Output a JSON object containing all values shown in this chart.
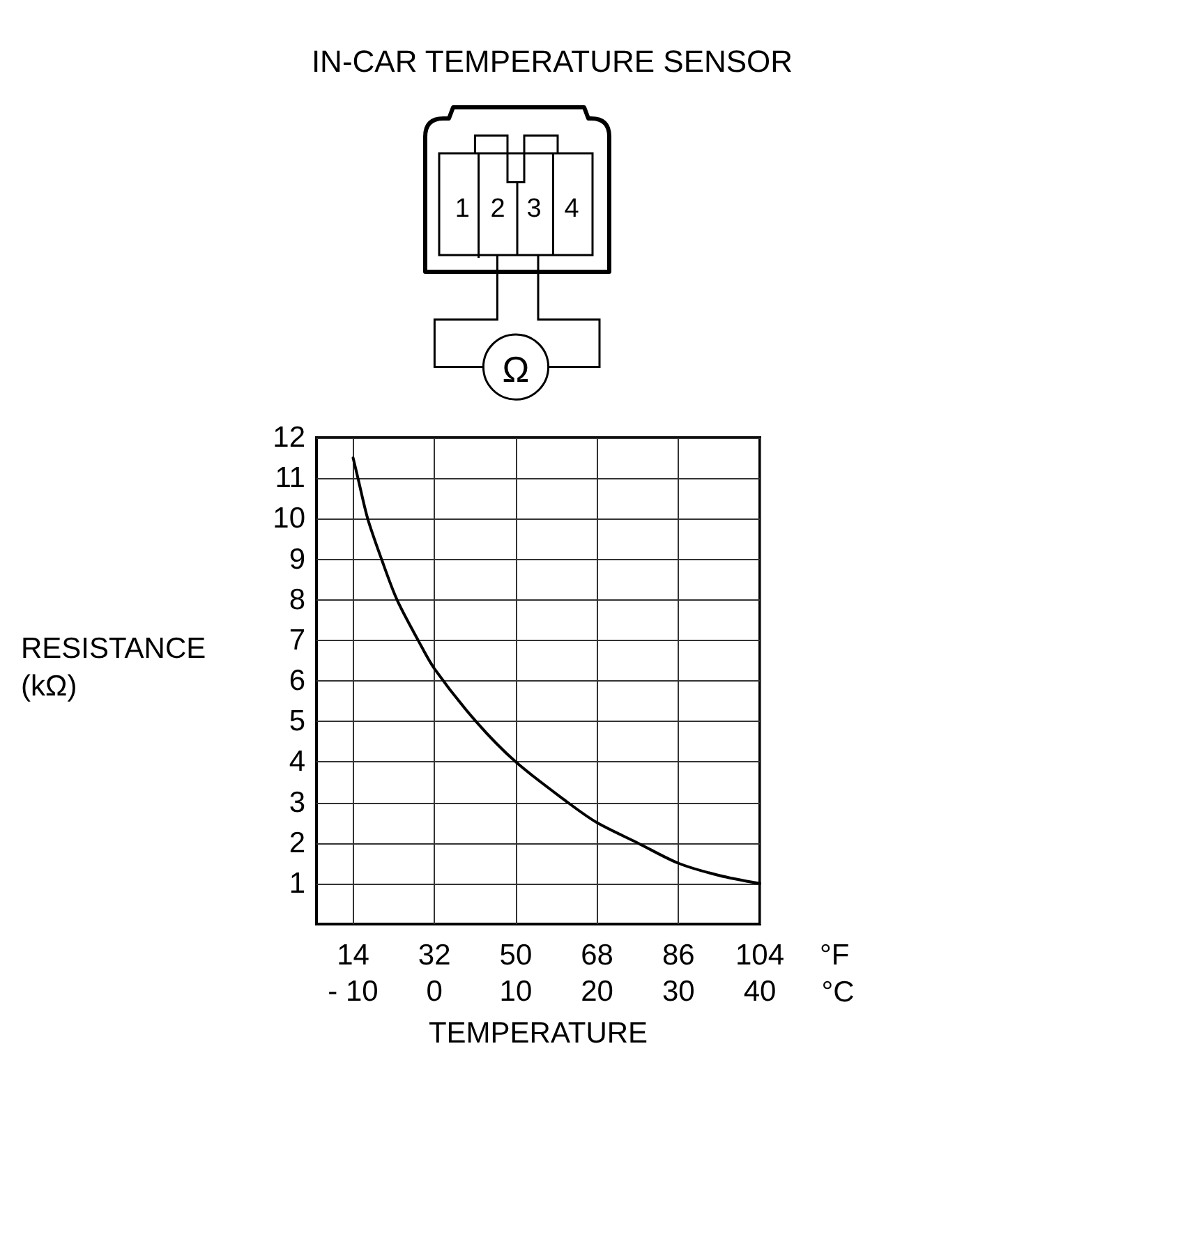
{
  "chart_data": {
    "type": "line",
    "title": "IN-CAR TEMPERATURE SENSOR",
    "xlabel": "TEMPERATURE",
    "ylabel": "RESISTANCE\n(kΩ)",
    "x2label": "°F",
    "annotations": [
      "1",
      "2",
      "3",
      "4",
      "Ω",
      "°C"
    ],
    "x": [
      -10,
      -9.4,
      -8.2,
      -6.5,
      -4.6,
      -2,
      0,
      5.1,
      10,
      16.4,
      20,
      25,
      30,
      35,
      40
    ],
    "series": [
      {
        "color": "#000000",
        "values": [
          11.5,
          11.0,
          10.0,
          9.0,
          8.0,
          7.0,
          6.3,
          5.0,
          4.0,
          3.0,
          2.5,
          2.0,
          1.5,
          1.2,
          1.0
        ]
      }
    ],
    "xlim": [
      -14.5,
      40
    ],
    "xticks": [
      {
        "value": -10,
        "label": "- 10"
      },
      0,
      10,
      20,
      30,
      40
    ],
    "x2lim": [
      5.9,
      104
    ],
    "x2ticks": [
      14,
      32,
      50,
      68,
      86,
      104
    ],
    "ylim": [
      0,
      12
    ],
    "yticks": [
      1,
      2,
      3,
      4,
      5,
      6,
      7,
      8,
      9,
      10,
      11,
      12
    ],
    "grid": true,
    "marker": "none",
    "line_style": "solid"
  }
}
